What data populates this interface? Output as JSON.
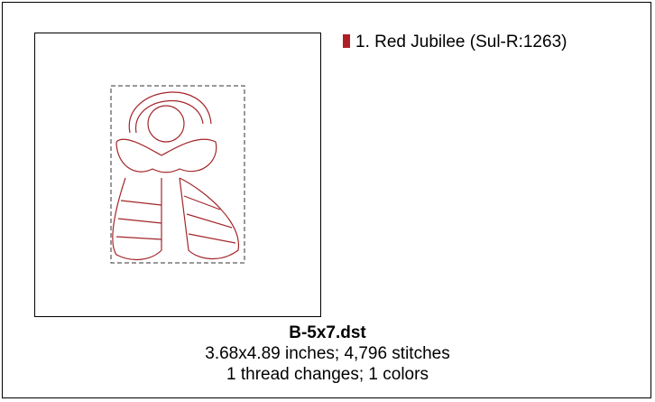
{
  "colors": [
    {
      "label": "1.  Red Jubilee (Sul-R:1263)"
    }
  ],
  "info": {
    "filename": "B-5x7.dst",
    "size_line": "3.68x4.89 inches; 4,796 stitches",
    "changes_line": "1 thread changes; 1 colors"
  }
}
